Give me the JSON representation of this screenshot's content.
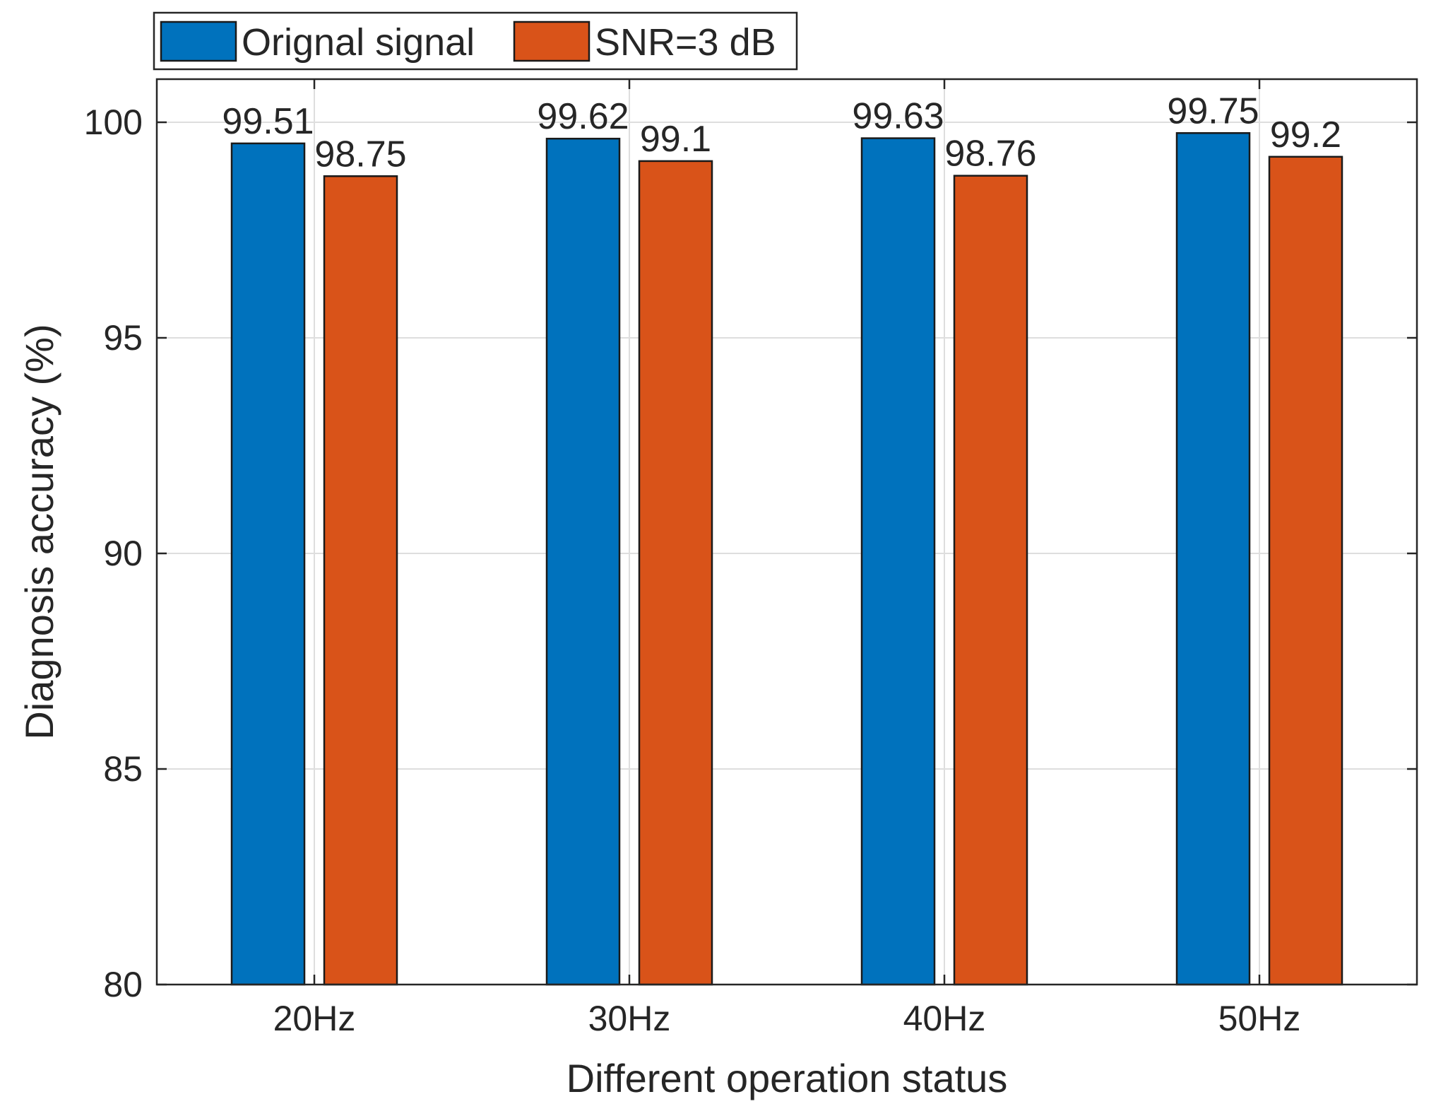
{
  "chart_data": {
    "type": "bar",
    "title": "",
    "xlabel": "Different operation status",
    "ylabel": "Diagnosis accuracy (%)",
    "categories": [
      "20Hz",
      "30Hz",
      "40Hz",
      "50Hz"
    ],
    "series": [
      {
        "name": "Orignal signal",
        "color": "#0072BD",
        "values": [
          99.51,
          99.62,
          99.63,
          99.75
        ],
        "labels": [
          "99.51",
          "99.62",
          "99.63",
          "99.75"
        ]
      },
      {
        "name": "SNR=3 dB",
        "color": "#D95319",
        "values": [
          98.75,
          99.1,
          98.76,
          99.2
        ],
        "labels": [
          "98.75",
          "99.1",
          "98.76",
          "99.2"
        ]
      }
    ],
    "ylim": [
      80,
      101
    ],
    "yticks": [
      80,
      85,
      90,
      95,
      100
    ],
    "ytick_labels": [
      "80",
      "85",
      "90",
      "95",
      "100"
    ],
    "grid": true,
    "legend_position": "top-left, outside, horizontal"
  }
}
